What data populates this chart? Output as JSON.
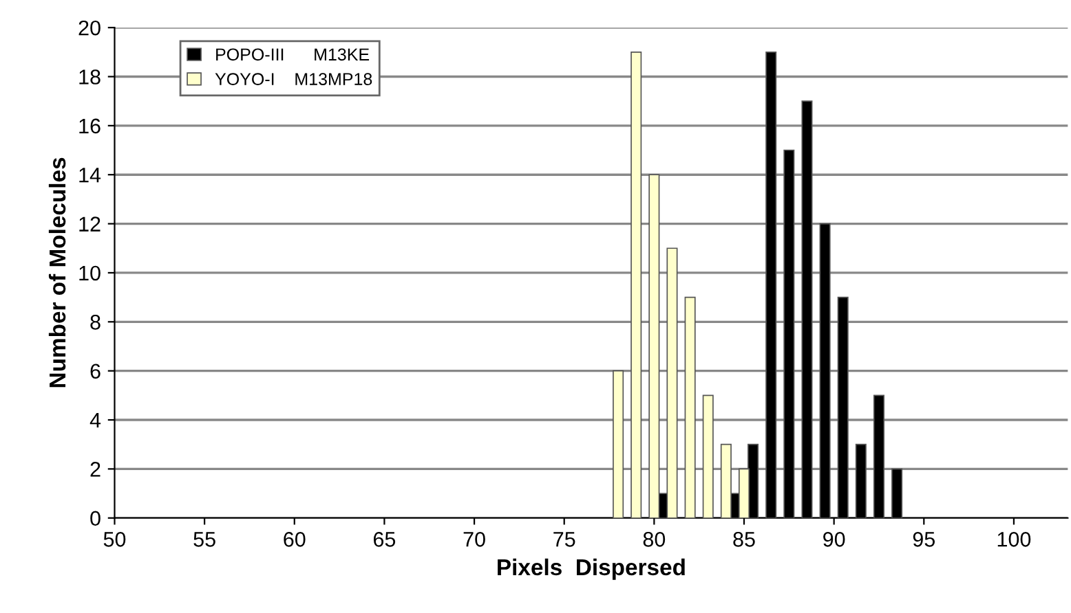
{
  "chart_data": {
    "type": "bar",
    "xlabel": "Pixels  Dispersed",
    "ylabel": "Number of Molecules",
    "series": [
      {
        "name": "POPO-III      M13KE",
        "color": "#000000",
        "x": [
          80.5,
          84.5,
          85.5,
          86.5,
          87.5,
          88.5,
          89.5,
          90.5,
          91.5,
          92.5,
          93.5
        ],
        "values": [
          1,
          1,
          3,
          19,
          15,
          17,
          12,
          9,
          3,
          5,
          2
        ]
      },
      {
        "name": "YOYO-I    M13MP18",
        "color": "#ffffcc",
        "x": [
          78,
          79,
          80,
          81,
          82,
          83,
          84,
          85
        ],
        "values": [
          6,
          19,
          14,
          11,
          9,
          5,
          3,
          2
        ]
      }
    ],
    "xlim": [
      50,
      103
    ],
    "xticks": [
      50,
      55,
      60,
      65,
      70,
      75,
      80,
      85,
      90,
      95,
      100
    ],
    "ylim": [
      0,
      20
    ],
    "yticks": [
      0,
      2,
      4,
      6,
      8,
      10,
      12,
      14,
      16,
      18,
      20
    ],
    "grid": "y",
    "legend": "top left"
  }
}
